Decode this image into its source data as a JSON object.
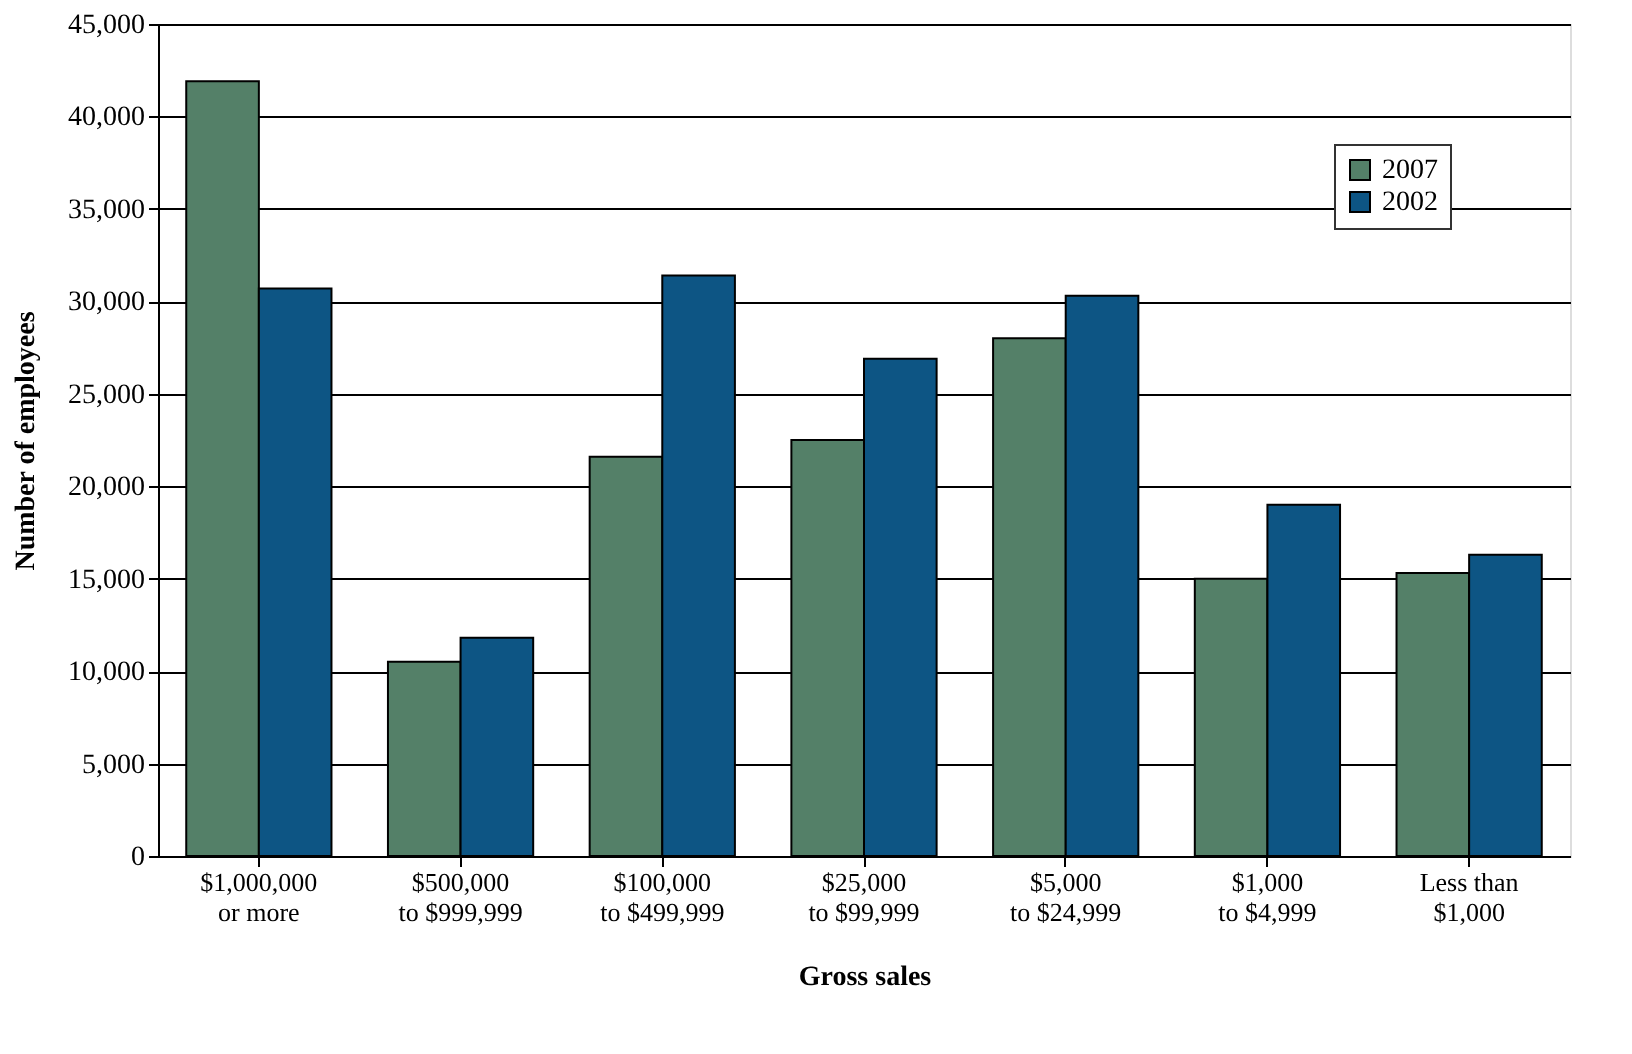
{
  "chart_data": {
    "type": "bar",
    "xlabel": "Gross sales",
    "ylabel": "Number of employees",
    "categories": [
      "$1,000,000\nor more",
      "$500,000\nto $999,999",
      "$100,000\nto $499,999",
      "$25,000\nto $99,999",
      "$5,000\nto $24,999",
      "$1,000\nto $4,999",
      "Less than\n$1,000"
    ],
    "series": [
      {
        "name": "2007",
        "color": "#548068",
        "values": [
          41900,
          10500,
          21600,
          22500,
          28000,
          15000,
          15300
        ]
      },
      {
        "name": "2002",
        "color": "#0d5584",
        "values": [
          30700,
          11800,
          31400,
          26900,
          30300,
          19000,
          16300
        ]
      }
    ],
    "ylim": [
      0,
      45000
    ],
    "yticks": [
      0,
      {
        "value": 5000,
        "label": "5,000"
      },
      {
        "value": 10000,
        "label": "10,000"
      },
      {
        "value": 15000,
        "label": "15,000"
      },
      {
        "value": 20000,
        "label": "20,000"
      },
      {
        "value": 25000,
        "label": "25,000"
      },
      {
        "value": 30000,
        "label": "30,000"
      },
      {
        "value": 35000,
        "label": "35,000"
      },
      {
        "value": 40000,
        "label": "40,000"
      },
      {
        "value": 45000,
        "label": "45,000"
      }
    ],
    "grid": "y",
    "legend": "top right"
  }
}
